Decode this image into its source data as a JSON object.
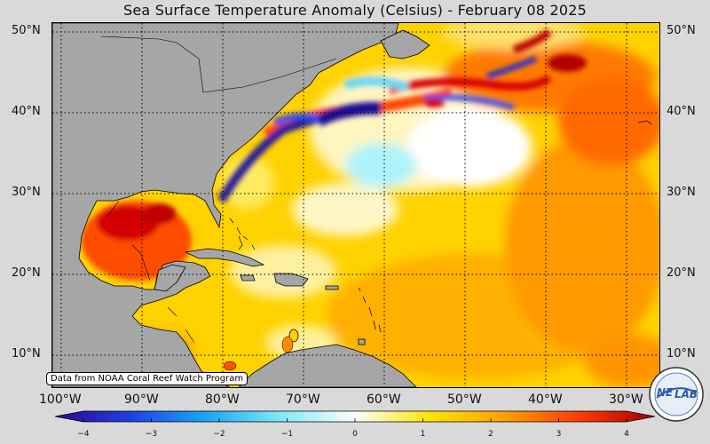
{
  "title": "Sea Surface Temperature Anomaly (Celsius) - February 08 2025",
  "source_note": "Data from NOAA Coral Reef Watch Program",
  "lat_labels_left": [
    "50°N",
    "40°N",
    "30°N",
    "20°N",
    "10°N"
  ],
  "lat_labels_right": [
    "50°N",
    "40°N",
    "30°N",
    "20°N",
    "10°N"
  ],
  "lon_labels": [
    "100°W",
    "90°W",
    "80°W",
    "70°W",
    "60°W",
    "50°W",
    "40°W",
    "30°W"
  ],
  "colorbar": {
    "ticks": [
      "−4",
      "−3",
      "−2",
      "−1",
      "0",
      "1",
      "2",
      "3",
      "4"
    ],
    "range": [
      -4,
      4
    ],
    "colors": [
      "#2a0a8f",
      "#1f3fe0",
      "#19a6f5",
      "#7fe8f8",
      "#ffffff",
      "#ffe400",
      "#ff9f00",
      "#ff3a00",
      "#a30000"
    ]
  },
  "logo": {
    "text_a": "NE",
    "text_b": "LAB"
  },
  "map": {
    "land_color": "#a6a6a6",
    "grid": "dotted"
  }
}
